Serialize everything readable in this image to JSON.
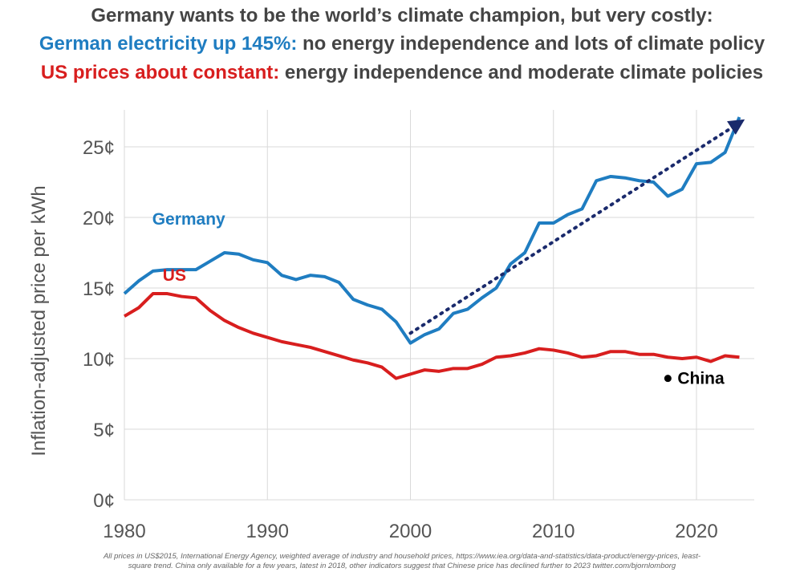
{
  "header": {
    "line1": "Germany wants to be the world’s climate champion, but very costly:",
    "line2_highlight": "German electricity up 145%:",
    "line2_rest": "no energy independence and lots of climate policy",
    "line3_highlight": "US prices about constant:",
    "line3_rest": "energy independence and moderate climate policies"
  },
  "footnote": {
    "line1": "All prices in US$2015, International Energy Agency, weighted average of industry and household prices, https://www.iea.org/data-and-statistics/data-product/energy-prices, least-",
    "line2": "square trend. China only available for a few years, latest in 2018, other indicators suggest that Chinese price has declined further to 2023 twitter.com/bjornlomborg"
  },
  "colors": {
    "germany": "#1f7dc1",
    "us": "#d81e1e",
    "trend": "#1a2a6c",
    "china": "#000000",
    "grid": "#d9d9d9",
    "axis_text": "#555555"
  },
  "chart_data": {
    "type": "line",
    "title": "",
    "xlabel": "",
    "ylabel": "Inflation-adjusted price per kWh",
    "xlim": [
      1980,
      2024
    ],
    "ylim": [
      0,
      27
    ],
    "x_ticks": [
      1980,
      1990,
      2000,
      2010,
      2020
    ],
    "x_tick_labels": [
      "1980",
      "1990",
      "2000",
      "2010",
      "2020"
    ],
    "y_ticks": [
      0,
      5,
      10,
      15,
      20,
      25
    ],
    "y_tick_labels": [
      "0¢",
      "5¢",
      "10¢",
      "15¢",
      "20¢",
      "25¢"
    ],
    "grid": true,
    "series": [
      {
        "name": "Germany",
        "x": [
          1980,
          1981,
          1982,
          1983,
          1984,
          1985,
          1986,
          1987,
          1988,
          1989,
          1990,
          1991,
          1992,
          1993,
          1994,
          1995,
          1996,
          1997,
          1998,
          1999,
          2000,
          2001,
          2002,
          2003,
          2004,
          2005,
          2006,
          2007,
          2008,
          2009,
          2010,
          2011,
          2012,
          2013,
          2014,
          2015,
          2016,
          2017,
          2018,
          2019,
          2020,
          2021,
          2022,
          2023
        ],
        "y": [
          14.6,
          15.5,
          16.2,
          16.3,
          16.3,
          16.3,
          16.9,
          17.5,
          17.4,
          17.0,
          16.8,
          15.9,
          15.6,
          15.9,
          15.8,
          15.4,
          14.2,
          13.8,
          13.5,
          12.6,
          11.1,
          11.7,
          12.1,
          13.2,
          13.5,
          14.3,
          15.0,
          16.7,
          17.5,
          19.6,
          19.6,
          20.2,
          20.6,
          22.6,
          22.9,
          22.8,
          22.6,
          22.5,
          21.5,
          22.0,
          23.8,
          23.9,
          24.6,
          27.1
        ]
      },
      {
        "name": "US",
        "x": [
          1980,
          1981,
          1982,
          1983,
          1984,
          1985,
          1986,
          1987,
          1988,
          1989,
          1990,
          1991,
          1992,
          1993,
          1994,
          1995,
          1996,
          1997,
          1998,
          1999,
          2000,
          2001,
          2002,
          2003,
          2004,
          2005,
          2006,
          2007,
          2008,
          2009,
          2010,
          2011,
          2012,
          2013,
          2014,
          2015,
          2016,
          2017,
          2018,
          2019,
          2020,
          2021,
          2022,
          2023
        ],
        "y": [
          13.0,
          13.6,
          14.6,
          14.6,
          14.4,
          14.3,
          13.4,
          12.7,
          12.2,
          11.8,
          11.5,
          11.2,
          11.0,
          10.8,
          10.5,
          10.2,
          9.9,
          9.7,
          9.4,
          8.6,
          8.9,
          9.2,
          9.1,
          9.3,
          9.3,
          9.6,
          10.1,
          10.2,
          10.4,
          10.7,
          10.6,
          10.4,
          10.1,
          10.2,
          10.5,
          10.5,
          10.3,
          10.3,
          10.1,
          10.0,
          10.1,
          9.8,
          10.2,
          10.1
        ]
      }
    ],
    "trend": {
      "x": [
        2000,
        2023
      ],
      "y": [
        11.8,
        26.7
      ]
    },
    "china": {
      "x": 2018,
      "y": 8.6,
      "label": "China"
    },
    "series_labels": [
      {
        "text": "Germany",
        "x": 1984.5,
        "y": 19.5
      },
      {
        "text": "US",
        "x": 1983.5,
        "y": 15.5
      }
    ]
  }
}
